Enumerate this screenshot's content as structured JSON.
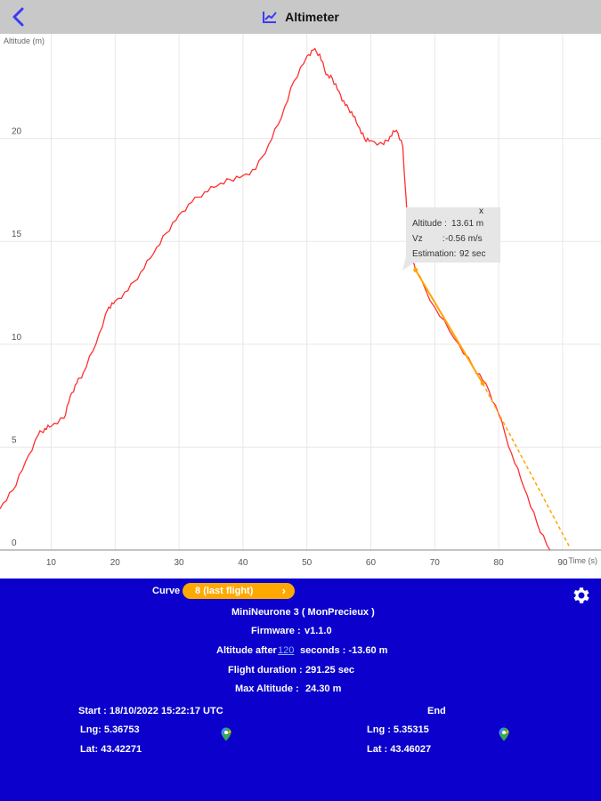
{
  "header": {
    "title": "Altimeter",
    "back_icon": "back-arrow-icon",
    "title_icon": "chart-line-icon"
  },
  "colors": {
    "header_bg": "#c8c8c8",
    "accent": "#3b3bf5",
    "panel_bg": "#0b00cc",
    "curve": "#ff3030",
    "estimate": "#ffa500"
  },
  "chart_data": {
    "type": "line",
    "ylabel": "Altitude (m)",
    "xlabel": "Time (s)",
    "xlim": [
      2,
      96
    ],
    "ylim": [
      0,
      25
    ],
    "x_ticks": [
      "10",
      "20",
      "30",
      "40",
      "50",
      "60",
      "70",
      "80",
      "90"
    ],
    "y_ticks": [
      "0",
      "5",
      "10",
      "15",
      "20"
    ],
    "grid": true,
    "series": [
      {
        "x": [
          2,
          4,
          6,
          8,
          9,
          10,
          12,
          13,
          14,
          15,
          17,
          19,
          20,
          22,
          24,
          26,
          28,
          30,
          32,
          34,
          36,
          38,
          40,
          42,
          44,
          46,
          48,
          50,
          51,
          52,
          53,
          54,
          55,
          56,
          57,
          58,
          59,
          60,
          62,
          63,
          64,
          65,
          66,
          67,
          70,
          73,
          76,
          78,
          80,
          82,
          84,
          86,
          88
        ],
        "y": [
          2.0,
          2.9,
          4.3,
          5.6,
          5.9,
          6.0,
          6.4,
          7.5,
          8.1,
          8.6,
          10.0,
          11.8,
          12.1,
          12.6,
          13.5,
          14.4,
          15.4,
          16.3,
          16.9,
          17.4,
          17.7,
          18.0,
          18.2,
          18.5,
          19.7,
          21.0,
          22.8,
          24.0,
          24.3,
          24.1,
          23.1,
          22.9,
          22.3,
          21.6,
          21.3,
          20.6,
          20.0,
          19.9,
          19.7,
          20.1,
          20.4,
          19.6,
          14.6,
          13.6,
          11.8,
          10.3,
          8.9,
          8.1,
          6.6,
          4.7,
          3.0,
          1.3,
          0.0
        ]
      },
      {
        "x": [
          67,
          77.5,
          91
        ],
        "y": [
          13.61,
          8.1,
          0.2
        ]
      }
    ],
    "annotations": [
      {
        "label": "Altitude",
        "value": "13.61 m"
      },
      {
        "label": "Vz",
        "value": "-0.56 m/s"
      },
      {
        "label": "Estimation",
        "value": "92 sec"
      }
    ]
  },
  "tooltip": {
    "close": "x",
    "rows": [
      {
        "label": "Altitude :",
        "value": "13.61 m"
      },
      {
        "label": "Vz        :",
        "value": "-0.56 m/s"
      },
      {
        "label": "Estimation:",
        "value": "92 sec"
      }
    ]
  },
  "panel": {
    "curve_label": "Curve",
    "curve_value": "8 (last flight)",
    "chevron": "›",
    "device": "MiniNeurone 3 ( MonPrecieux )",
    "firmware_label": "Firmware :",
    "firmware_value": "v1.1.0",
    "altitude_after_prefix": "Altitude after",
    "altitude_after_seconds": "120",
    "altitude_after_suffix": "seconds : -13.60 m",
    "duration_label": "Flight duration :",
    "duration_value": "291.25 sec",
    "max_alt_label": "Max Altitude :",
    "max_alt_value": "24.30 m",
    "start": "Start : 18/10/2022 15:22:17 UTC",
    "end": "End",
    "start_lng": "Lng: 5.36753",
    "start_lat": "Lat: 43.42271",
    "end_lng": "Lng : 5.35315",
    "end_lat": "Lat : 43.46027",
    "settings_icon": "gear-icon",
    "map_icon": "map-pin-icon"
  }
}
